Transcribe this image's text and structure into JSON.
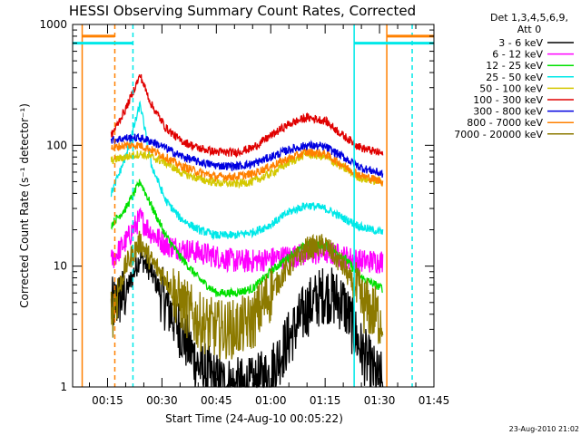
{
  "chart_data": {
    "type": "line",
    "title": "HESSI Observing Summary Count Rates, Corrected",
    "xlabel": "Start Time (24-Aug-10 00:05:22)",
    "ylabel": "Corrected Count Rate (s⁻¹ detector⁻¹)",
    "y_scale": "log",
    "ylim": [
      1,
      1000
    ],
    "xlim": [
      "00:05:22",
      "01:45:00"
    ],
    "x_ticks": [
      "00:15",
      "00:30",
      "00:45",
      "01:00",
      "01:15",
      "01:30",
      "01:45"
    ],
    "y_ticks": [
      "1",
      "10",
      "100",
      "1000"
    ],
    "legend": {
      "position": "right",
      "header": [
        "Det 1,3,4,5,6,9,",
        "Att 0"
      ],
      "entries": [
        {
          "label": "3 - 6 keV",
          "color": "#000000"
        },
        {
          "label": "6 - 12 keV",
          "color": "#ff00ff"
        },
        {
          "label": "12 - 25 keV",
          "color": "#00e000"
        },
        {
          "label": "25 - 50 keV",
          "color": "#00e8e8"
        },
        {
          "label": "50 - 100 keV",
          "color": "#d4c800"
        },
        {
          "label": "100 - 300 keV",
          "color": "#e00000"
        },
        {
          "label": "300 - 800 keV",
          "color": "#0000e0"
        },
        {
          "label": "800 - 7000 keV",
          "color": "#ff8000"
        },
        {
          "label": "7000 - 20000 keV",
          "color": "#8c7a00"
        }
      ]
    },
    "series": [
      {
        "name": "3 - 6 keV",
        "color": "#000000",
        "x": [
          "00:16",
          "00:20",
          "00:24",
          "00:27",
          "00:31",
          "00:35",
          "00:40",
          "00:45",
          "00:50",
          "00:55",
          "01:00",
          "01:05",
          "01:10",
          "01:15",
          "01:20",
          "01:25",
          "01:29",
          "01:31"
        ],
        "y": [
          4.5,
          6,
          12,
          9,
          5,
          3,
          1.5,
          1.1,
          1,
          1,
          1.3,
          2.5,
          4.5,
          6,
          5,
          2,
          1.2,
          1.1
        ]
      },
      {
        "name": "6 - 12 keV",
        "color": "#ff00ff",
        "x": [
          "00:16",
          "00:20",
          "00:24",
          "00:27",
          "00:31",
          "00:35",
          "00:40",
          "00:45",
          "00:50",
          "00:55",
          "01:00",
          "01:05",
          "01:10",
          "01:15",
          "01:20",
          "01:25",
          "01:31"
        ],
        "y": [
          11,
          16,
          25,
          19,
          15,
          14,
          13,
          12,
          11,
          11,
          11.5,
          12,
          12.5,
          13,
          12,
          11,
          11
        ]
      },
      {
        "name": "12 - 25 keV",
        "color": "#00e000",
        "x": [
          "00:16",
          "00:20",
          "00:24",
          "00:27",
          "00:31",
          "00:35",
          "00:40",
          "00:45",
          "00:50",
          "00:55",
          "01:00",
          "01:05",
          "01:10",
          "01:15",
          "01:20",
          "01:25",
          "01:31"
        ],
        "y": [
          22,
          30,
          50,
          32,
          18,
          12,
          8,
          6,
          6,
          6.5,
          9,
          12,
          15,
          15,
          12,
          8,
          6.5
        ]
      },
      {
        "name": "25 - 50 keV",
        "color": "#00e8e8",
        "x": [
          "00:16",
          "00:20",
          "00:24",
          "00:27",
          "00:31",
          "00:35",
          "00:40",
          "00:45",
          "00:50",
          "00:55",
          "01:00",
          "01:05",
          "01:10",
          "01:15",
          "01:20",
          "01:25",
          "01:31"
        ],
        "y": [
          40,
          80,
          220,
          70,
          35,
          25,
          20,
          18,
          18,
          19,
          22,
          28,
          32,
          30,
          25,
          21,
          19
        ]
      },
      {
        "name": "50 - 100 keV",
        "color": "#d4c800",
        "x": [
          "00:16",
          "00:20",
          "00:24",
          "00:27",
          "00:31",
          "00:35",
          "00:40",
          "00:45",
          "00:50",
          "00:55",
          "01:00",
          "01:05",
          "01:10",
          "01:15",
          "01:20",
          "01:25",
          "01:31"
        ],
        "y": [
          75,
          80,
          85,
          80,
          72,
          60,
          53,
          49,
          48,
          50,
          58,
          72,
          85,
          80,
          65,
          53,
          50
        ]
      },
      {
        "name": "100 - 300 keV",
        "color": "#e00000",
        "x": [
          "00:16",
          "00:20",
          "00:24",
          "00:27",
          "00:31",
          "00:35",
          "00:40",
          "00:45",
          "00:50",
          "00:55",
          "01:00",
          "01:05",
          "01:10",
          "01:15",
          "01:20",
          "01:25",
          "01:31"
        ],
        "y": [
          120,
          200,
          380,
          220,
          140,
          110,
          95,
          88,
          87,
          95,
          120,
          150,
          170,
          160,
          120,
          95,
          85
        ]
      },
      {
        "name": "300 - 800 keV",
        "color": "#0000e0",
        "x": [
          "00:16",
          "00:20",
          "00:24",
          "00:27",
          "00:31",
          "00:35",
          "00:40",
          "00:45",
          "00:50",
          "00:55",
          "01:00",
          "01:05",
          "01:10",
          "01:15",
          "01:20",
          "01:25",
          "01:31"
        ],
        "y": [
          110,
          115,
          115,
          108,
          95,
          82,
          73,
          68,
          67,
          70,
          80,
          92,
          100,
          97,
          80,
          65,
          58
        ]
      },
      {
        "name": "800 - 7000 keV",
        "color": "#ff8000",
        "x": [
          "00:16",
          "00:20",
          "00:24",
          "00:27",
          "00:31",
          "00:35",
          "00:40",
          "00:45",
          "00:50",
          "00:55",
          "01:00",
          "01:05",
          "01:10",
          "01:15",
          "01:20",
          "01:25",
          "01:31"
        ],
        "y": [
          95,
          100,
          100,
          92,
          80,
          68,
          60,
          55,
          55,
          58,
          67,
          78,
          88,
          85,
          68,
          56,
          50
        ]
      },
      {
        "name": "7000 - 20000 keV",
        "color": "#8c7a00",
        "x": [
          "00:16",
          "00:20",
          "00:24",
          "00:27",
          "00:31",
          "00:35",
          "00:40",
          "00:45",
          "00:50",
          "00:55",
          "01:00",
          "01:05",
          "01:10",
          "01:15",
          "01:20",
          "01:25",
          "01:31"
        ],
        "y": [
          4,
          10,
          16,
          11,
          8,
          5,
          3.5,
          3,
          3,
          3.5,
          6,
          10,
          14,
          15,
          10,
          5,
          3.5
        ]
      }
    ],
    "vertical_markers": [
      {
        "x": "00:08",
        "color": "#ff8000",
        "style": "solid"
      },
      {
        "x": "00:17",
        "color": "#ff8000",
        "style": "dashed"
      },
      {
        "x": "00:22",
        "color": "#00e8e8",
        "style": "dashed"
      },
      {
        "x": "01:23",
        "color": "#00e8e8",
        "style": "solid"
      },
      {
        "x": "01:32",
        "color": "#ff8000",
        "style": "solid"
      },
      {
        "x": "01:39",
        "color": "#00e8e8",
        "style": "dashed"
      }
    ],
    "range_bars": [
      {
        "x": [
          "00:08",
          "00:17"
        ],
        "y": 800,
        "color": "#ff8000"
      },
      {
        "x": [
          "00:05:22",
          "00:22"
        ],
        "y": 700,
        "color": "#00e8e8"
      },
      {
        "x": [
          "01:32",
          "01:45"
        ],
        "y": 800,
        "color": "#ff8000"
      },
      {
        "x": [
          "01:23",
          "01:45"
        ],
        "y": 700,
        "color": "#00e8e8"
      }
    ]
  },
  "footer_timestamp": "23-Aug-2010 21:02"
}
